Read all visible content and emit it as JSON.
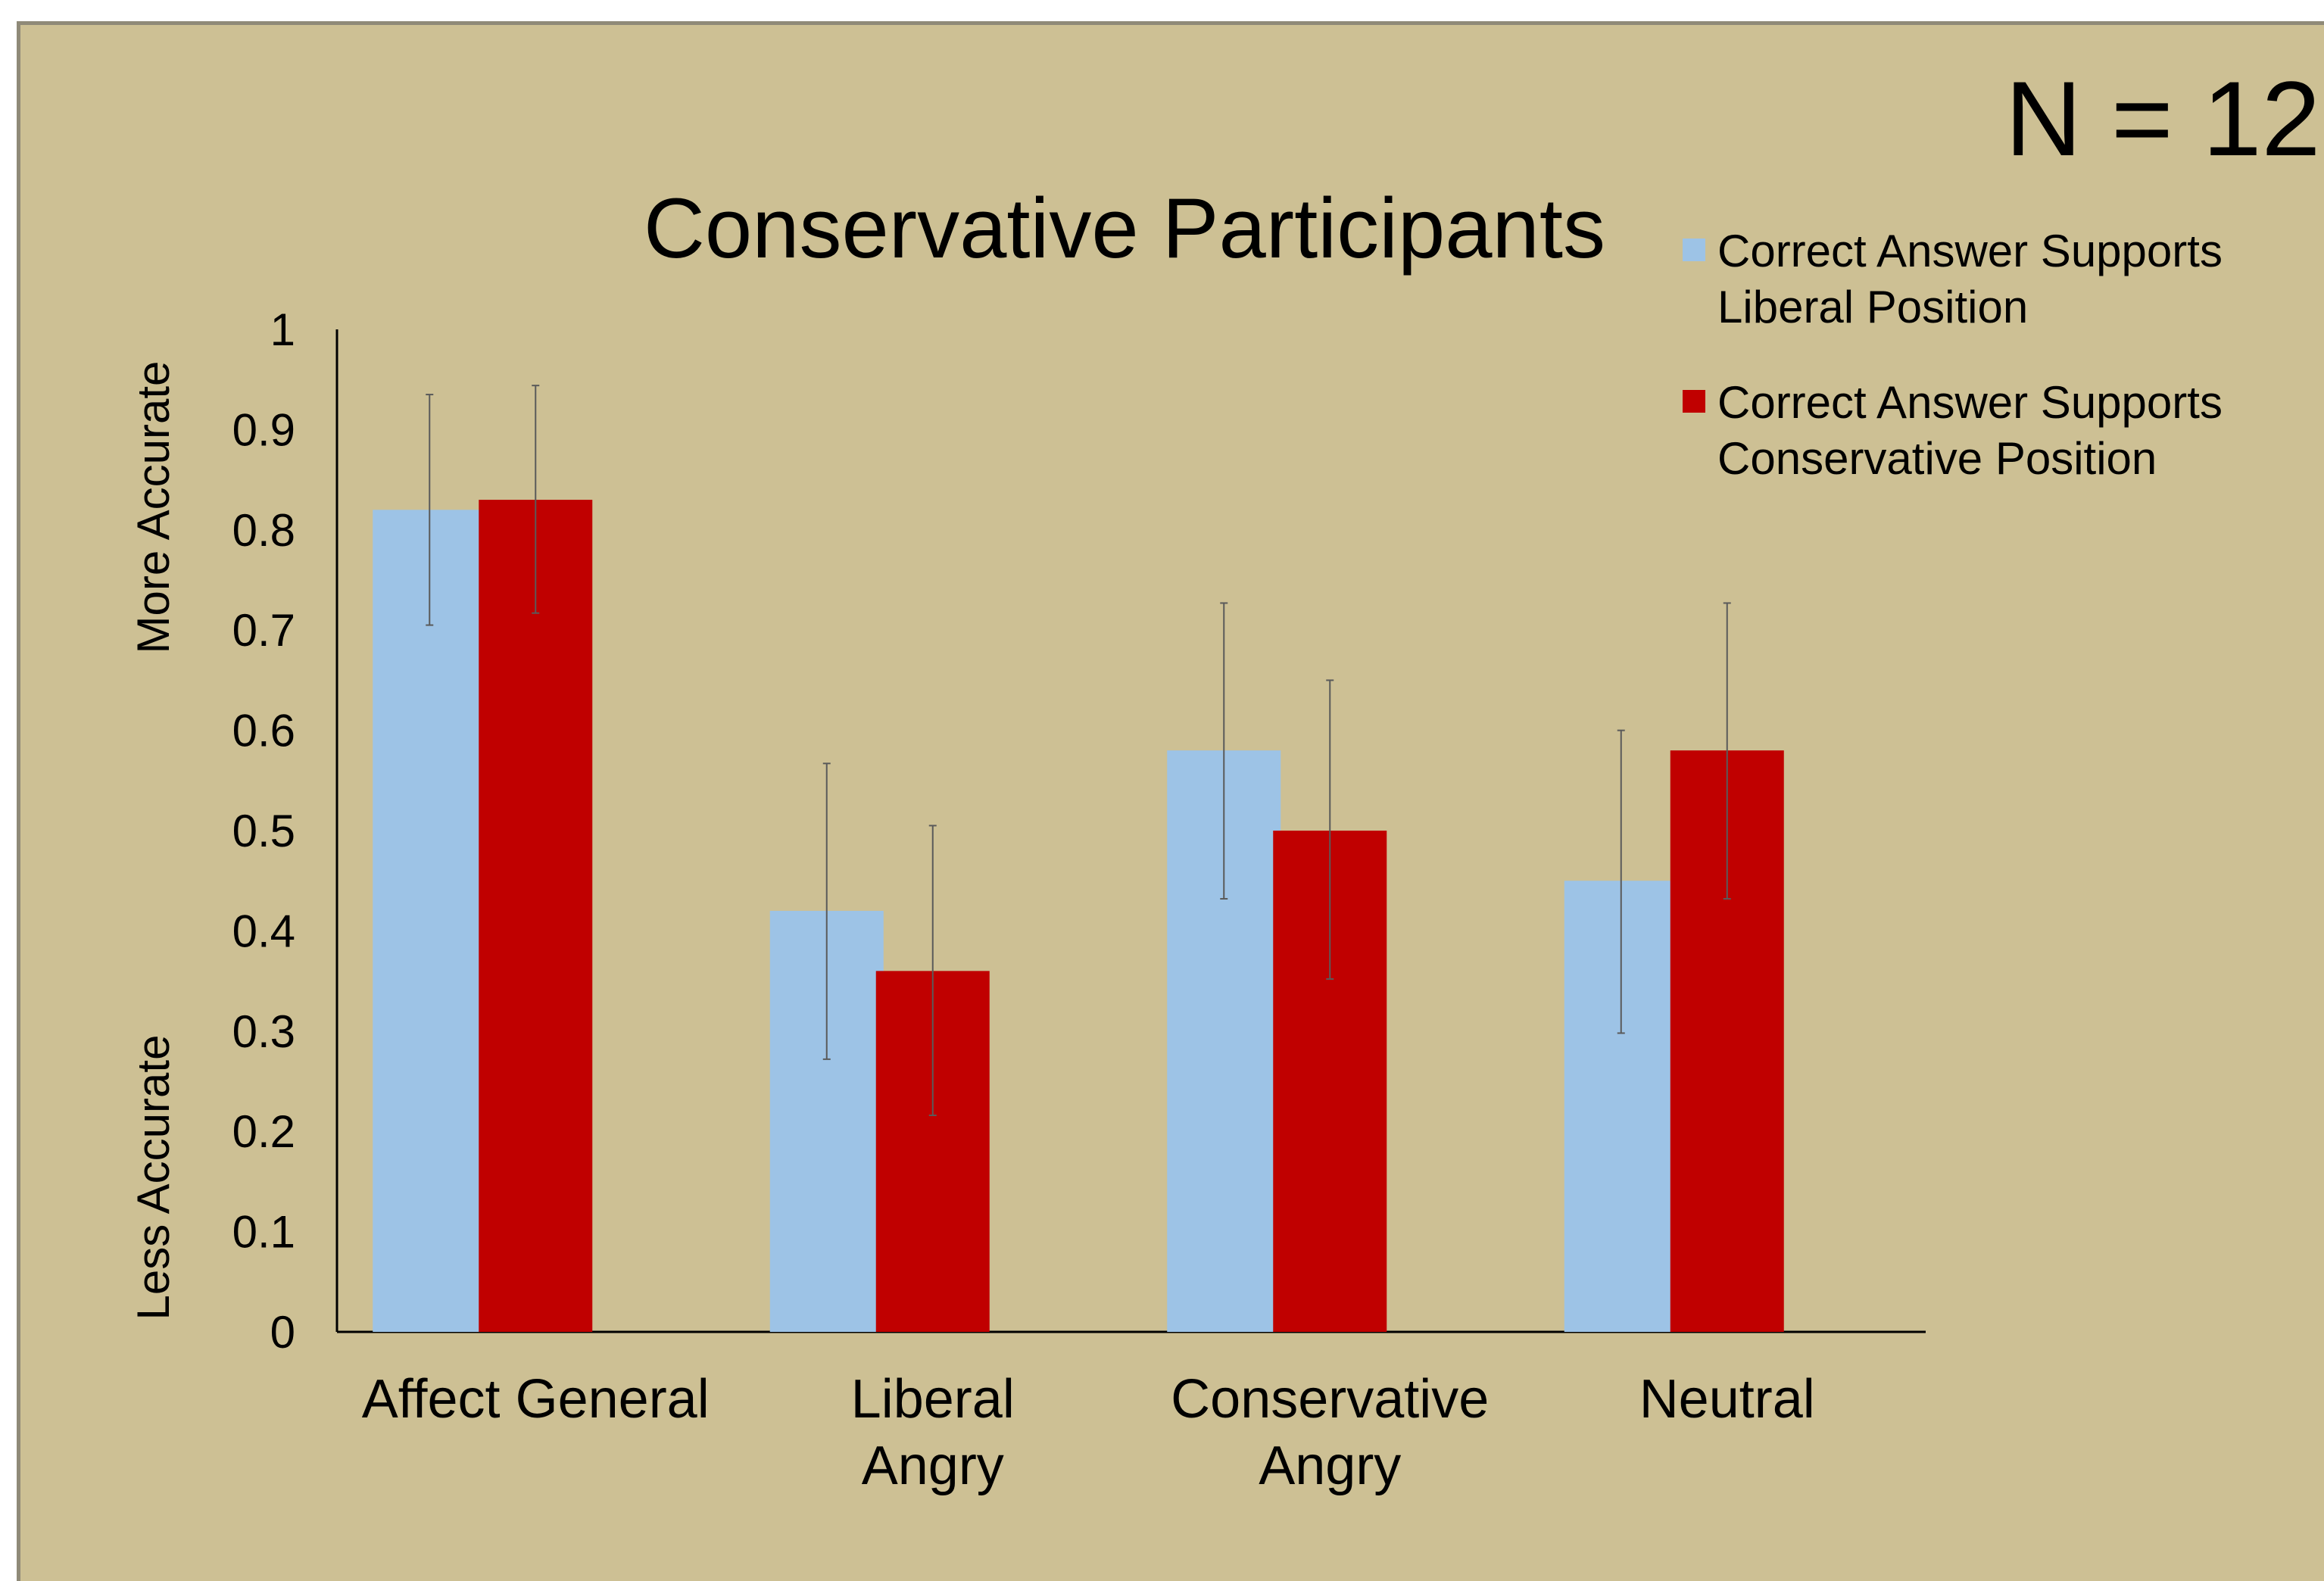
{
  "sample_size": "N = 12",
  "legend_swatch_size": 30,
  "chart_data": {
    "type": "bar",
    "title": "Conservative Participants",
    "categories": [
      "Affect General",
      "Liberal Angry",
      "Conservative Angry",
      "Neutral"
    ],
    "category_lines": [
      [
        "Affect General"
      ],
      [
        "Liberal",
        "Angry"
      ],
      [
        "Conservative",
        "Angry"
      ],
      [
        "Neutral"
      ]
    ],
    "series": [
      {
        "name": "Correct Answer Supports Liberal Position",
        "legend_lines": [
          "Correct Answer Supports",
          "Liberal Position"
        ],
        "color": "#9dc3e6",
        "values": [
          0.82,
          0.42,
          0.58,
          0.45
        ],
        "error_low": [
          0.705,
          0.272,
          0.432,
          0.298
        ],
        "error_high": [
          0.935,
          0.567,
          0.727,
          0.6
        ]
      },
      {
        "name": "Correct Answer Supports Conservative Position",
        "legend_lines": [
          "Correct Answer Supports",
          "Conservative Position"
        ],
        "color": "#c00000",
        "values": [
          0.83,
          0.36,
          0.5,
          0.58
        ],
        "error_low": [
          0.717,
          0.216,
          0.352,
          0.432
        ],
        "error_high": [
          0.944,
          0.505,
          0.65,
          0.727
        ]
      }
    ],
    "ylim": [
      0,
      1
    ],
    "yticks": [
      "0",
      "0.1",
      "0.2",
      "0.3",
      "0.4",
      "0.5",
      "0.6",
      "0.7",
      "0.8",
      "0.9",
      "1"
    ],
    "ylabel_top": "More Accurate",
    "ylabel_bottom": "Less Accurate",
    "xlabel": "",
    "grid": false,
    "legend_position": "top-right"
  }
}
